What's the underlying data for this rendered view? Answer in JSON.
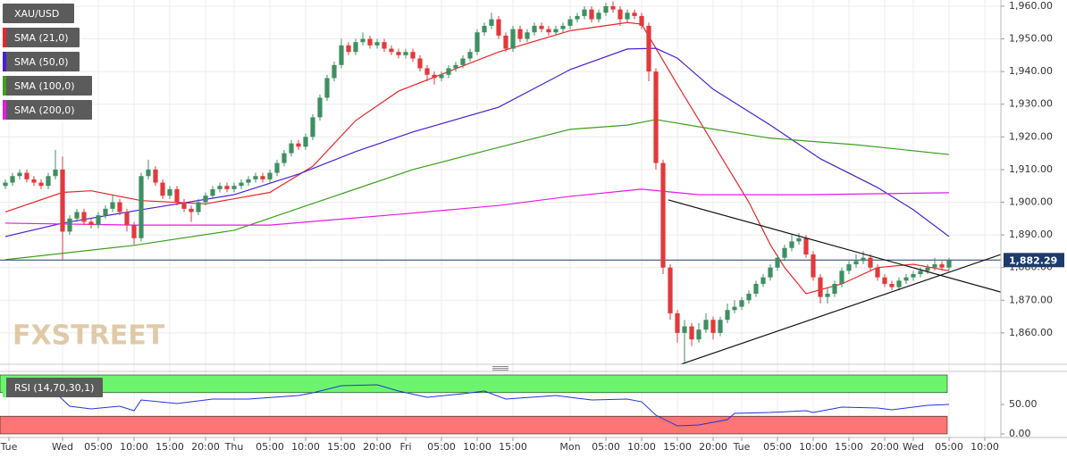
{
  "chart_data": {
    "type": "candlestick",
    "series_name": "XAU/USD",
    "up_color": "#3f8f62",
    "down_color": "#e2393b",
    "x": [
      -8,
      -7,
      -6,
      -5,
      -4,
      -3,
      -2,
      -1,
      0,
      1,
      2,
      3,
      4,
      5,
      6,
      7,
      8,
      9,
      10,
      11,
      12,
      13,
      14,
      15,
      16,
      17,
      18,
      19,
      20,
      21,
      22,
      23,
      24,
      25,
      26,
      27,
      28,
      29,
      30,
      31,
      32,
      33,
      34,
      35,
      36,
      37,
      38,
      39,
      40,
      41,
      42,
      43,
      44,
      45,
      46,
      47,
      48,
      49,
      50,
      51,
      52,
      53,
      54,
      55,
      56,
      57,
      58,
      59,
      60,
      61,
      62,
      63,
      64,
      65,
      66,
      67,
      68,
      69,
      70,
      71,
      72,
      73,
      74,
      75,
      76,
      77,
      78,
      79,
      80,
      81,
      82,
      83,
      84,
      85,
      86,
      87,
      88,
      89,
      90,
      91,
      92,
      93,
      94,
      95,
      96,
      97,
      98,
      99,
      100,
      101,
      102,
      103,
      104,
      105,
      106,
      107,
      108,
      109,
      110,
      111,
      112,
      113,
      114,
      115,
      116,
      117,
      118,
      119,
      120,
      121,
      122,
      123,
      124
    ],
    "open": [
      1905,
      1906,
      1908,
      1909,
      1907,
      1906,
      1905,
      1908,
      1910,
      1891,
      1895,
      1897,
      1894,
      1893,
      1896,
      1898,
      1900,
      1897,
      1893,
      1889,
      1908,
      1910,
      1906,
      1902,
      1904,
      1900,
      1898,
      1897,
      1900,
      1902,
      1904,
      1905,
      1904,
      1905,
      1906,
      1907,
      1908,
      1907,
      1909,
      1912,
      1915,
      1918,
      1917,
      1920,
      1926,
      1932,
      1938,
      1942,
      1948,
      1946,
      1949,
      1950,
      1948,
      1949,
      1947,
      1946,
      1945,
      1946,
      1944,
      1941,
      1939,
      1938,
      1939,
      1941,
      1942,
      1944,
      1946,
      1952,
      1954,
      1956,
      1951,
      1947,
      1953,
      1950,
      1952,
      1954,
      1953,
      1952,
      1953,
      1954,
      1956,
      1957,
      1959,
      1956,
      1958,
      1960,
      1959,
      1956,
      1958,
      1957,
      1954,
      1940,
      1912,
      1880,
      1866,
      1860,
      1862,
      1858,
      1861,
      1864,
      1860,
      1864,
      1867,
      1868,
      1870,
      1872,
      1875,
      1877,
      1880,
      1883,
      1886,
      1888,
      1889,
      1884,
      1877,
      1871,
      1872,
      1875,
      1879,
      1881,
      1882,
      1883,
      1880,
      1877,
      1875,
      1874,
      1876,
      1877,
      1878,
      1879,
      1880,
      1881,
      1880
    ],
    "high": [
      1907,
      1909,
      1910,
      1910,
      1908,
      1907,
      1909,
      1916,
      1914,
      1896,
      1898,
      1898,
      1895,
      1897,
      1899,
      1902,
      1901,
      1898,
      1894,
      1909,
      1913,
      1911,
      1907,
      1905,
      1905,
      1901,
      1899,
      1901,
      1903,
      1905,
      1906,
      1906,
      1906,
      1907,
      1908,
      1909,
      1909,
      1910,
      1913,
      1916,
      1919,
      1919,
      1921,
      1927,
      1933,
      1939,
      1943,
      1950,
      1949,
      1950,
      1952,
      1951,
      1950,
      1950,
      1948,
      1947,
      1947,
      1947,
      1945,
      1942,
      1940,
      1940,
      1942,
      1943,
      1945,
      1947,
      1953,
      1955,
      1958,
      1957,
      1952,
      1954,
      1954,
      1953,
      1955,
      1955,
      1954,
      1954,
      1955,
      1957,
      1958,
      1960,
      1960,
      1959,
      1961,
      1961.5,
      1960,
      1959,
      1959,
      1958,
      1955,
      1941,
      1913,
      1881,
      1867,
      1864,
      1863,
      1863,
      1866,
      1865,
      1865,
      1869,
      1870,
      1871,
      1873,
      1876,
      1878,
      1881,
      1884,
      1887,
      1890,
      1890.5,
      1890,
      1885,
      1878,
      1874,
      1876,
      1880,
      1882,
      1884,
      1885,
      1884,
      1881,
      1878,
      1876,
      1877,
      1878,
      1879,
      1880,
      1881,
      1883,
      1882,
      1883
    ],
    "low": [
      1904,
      1905,
      1907,
      1906,
      1905,
      1904,
      1904,
      1907,
      1882.5,
      1890,
      1894,
      1893,
      1892,
      1892,
      1895,
      1897,
      1896,
      1891,
      1887,
      1888,
      1907,
      1905,
      1901,
      1901,
      1899,
      1897,
      1894,
      1896,
      1899,
      1901,
      1903,
      1903,
      1903,
      1904,
      1905,
      1906,
      1906,
      1906,
      1908,
      1911,
      1914,
      1916,
      1916,
      1919,
      1925,
      1931,
      1937,
      1941,
      1945,
      1945,
      1948,
      1947,
      1947,
      1946,
      1945,
      1944,
      1944,
      1943,
      1940,
      1937,
      1936,
      1937,
      1938,
      1940,
      1941,
      1943,
      1945,
      1951,
      1953,
      1950,
      1946,
      1946,
      1949,
      1949,
      1951,
      1952,
      1951,
      1951,
      1952,
      1953,
      1955,
      1956,
      1955,
      1955,
      1957,
      1958,
      1954,
      1955,
      1956,
      1953,
      1937,
      1910,
      1878,
      1864,
      1857,
      1851,
      1856,
      1857,
      1860,
      1858,
      1859,
      1863,
      1866,
      1867,
      1869,
      1871,
      1874,
      1876,
      1879,
      1882,
      1885,
      1887,
      1883,
      1876,
      1869,
      1869,
      1871,
      1874,
      1878,
      1880,
      1881,
      1879,
      1876,
      1874,
      1873,
      1873,
      1875,
      1876,
      1877,
      1878,
      1879,
      1879,
      1879
    ],
    "close": [
      1906,
      1908,
      1909,
      1907,
      1906,
      1905,
      1908,
      1910,
      1891,
      1895,
      1897,
      1894,
      1893,
      1896,
      1898,
      1900,
      1897,
      1893,
      1889,
      1908,
      1910,
      1906,
      1902,
      1904,
      1900,
      1898,
      1897,
      1900,
      1902,
      1904,
      1905,
      1904,
      1905,
      1906,
      1907,
      1908,
      1907,
      1909,
      1912,
      1915,
      1918,
      1917,
      1920,
      1926,
      1932,
      1938,
      1942,
      1948,
      1946,
      1949,
      1950,
      1948,
      1949,
      1947,
      1946,
      1945,
      1946,
      1944,
      1941,
      1939,
      1938,
      1939,
      1941,
      1942,
      1944,
      1946,
      1952,
      1954,
      1956,
      1951,
      1947,
      1953,
      1950,
      1952,
      1954,
      1953,
      1952,
      1953,
      1954,
      1956,
      1957,
      1959,
      1956,
      1958,
      1960,
      1959,
      1956,
      1958,
      1957,
      1954,
      1940,
      1912,
      1880,
      1866,
      1860,
      1862,
      1858,
      1861,
      1864,
      1860,
      1864,
      1867,
      1868,
      1870,
      1872,
      1875,
      1877,
      1880,
      1883,
      1886,
      1888,
      1889,
      1884,
      1877,
      1871,
      1872,
      1875,
      1879,
      1881,
      1882,
      1883,
      1880,
      1877,
      1875,
      1874,
      1876,
      1877,
      1878,
      1879,
      1880,
      1881,
      1880,
      1882.29
    ],
    "xlim": [
      -8.75,
      131.25
    ],
    "xticks": [
      {
        "value": -7.5,
        "label": "Tue"
      },
      {
        "value": 0,
        "label": "Wed"
      },
      {
        "value": 5,
        "label": "05:00"
      },
      {
        "value": 10,
        "label": "10:00"
      },
      {
        "value": 15,
        "label": "15:00"
      },
      {
        "value": 20,
        "label": "20:00"
      },
      {
        "value": 24,
        "label": "Thu"
      },
      {
        "value": 29,
        "label": "05:00"
      },
      {
        "value": 34,
        "label": "10:00"
      },
      {
        "value": 39,
        "label": "15:00"
      },
      {
        "value": 44,
        "label": "20:00"
      },
      {
        "value": 48,
        "label": "Fri"
      },
      {
        "value": 53,
        "label": "05:00"
      },
      {
        "value": 58,
        "label": "10:00"
      },
      {
        "value": 63,
        "label": "15:00"
      },
      {
        "value": 71,
        "label": "Mon"
      },
      {
        "value": 76,
        "label": "05:00"
      },
      {
        "value": 81,
        "label": "10:00"
      },
      {
        "value": 86,
        "label": "15:00"
      },
      {
        "value": 91,
        "label": "20:00"
      },
      {
        "value": 95,
        "label": "Tue"
      },
      {
        "value": 100,
        "label": "05:00"
      },
      {
        "value": 105,
        "label": "10:00"
      },
      {
        "value": 110,
        "label": "15:00"
      },
      {
        "value": 115,
        "label": "20:00"
      },
      {
        "value": 119,
        "label": "Wed"
      },
      {
        "value": 124,
        "label": "05:00"
      },
      {
        "value": 129,
        "label": "10:00"
      }
    ],
    "ylim": [
      1850.4,
      1961.9
    ],
    "yticks": [
      {
        "value": 1860,
        "label": "1,860.00"
      },
      {
        "value": 1870,
        "label": "1,870.00"
      },
      {
        "value": 1880,
        "label": "1,880.00"
      },
      {
        "value": 1890,
        "label": "1,890.00"
      },
      {
        "value": 1900,
        "label": "1,900.00"
      },
      {
        "value": 1910,
        "label": "1,910.00"
      },
      {
        "value": 1920,
        "label": "1,920.00"
      },
      {
        "value": 1930,
        "label": "1,930.00"
      },
      {
        "value": 1940,
        "label": "1,940.00"
      },
      {
        "value": 1950,
        "label": "1,950.00"
      },
      {
        "value": 1960,
        "label": "1,960.00"
      }
    ],
    "grid": true,
    "overlays": [
      {
        "name": "SMA (21,0)",
        "color": "#e8262a",
        "x": [
          -8,
          0,
          4,
          11,
          20,
          29,
          35,
          41,
          47,
          54,
          61,
          71,
          79,
          81,
          86,
          91,
          96,
          99,
          101,
          104,
          109,
          114,
          119,
          124
        ],
        "values": [
          1897,
          1903,
          1903.5,
          1900.5,
          1899.5,
          1903,
          1911,
          1925,
          1934,
          1940,
          1946,
          1952.5,
          1955,
          1954.5,
          1936,
          1918,
          1900,
          1887,
          1880,
          1872,
          1875,
          1880,
          1881,
          1879
        ]
      },
      {
        "name": "SMA (50,0)",
        "color": "#4a1fd6",
        "x": [
          -8,
          0,
          11,
          24,
          33,
          41,
          49,
          61,
          71,
          79,
          83,
          86,
          91,
          99,
          106,
          114,
          119,
          124
        ],
        "values": [
          1889.5,
          1893.6,
          1897.7,
          1902.3,
          1908.6,
          1915.5,
          1921.5,
          1929.1,
          1940.6,
          1946.9,
          1947.1,
          1944.1,
          1934.6,
          1923.6,
          1913.3,
          1904.5,
          1897.7,
          1889.5
        ]
      },
      {
        "name": "SMA (100,0)",
        "color": "#3ca01e",
        "x": [
          -8,
          10,
          24,
          35,
          49,
          61,
          71,
          79,
          83,
          89,
          99,
          111,
          124
        ],
        "values": [
          1882.4,
          1886.8,
          1891.4,
          1899.6,
          1910,
          1916.8,
          1922.3,
          1923.6,
          1925.3,
          1923.1,
          1919.6,
          1917.6,
          1914.6
        ]
      },
      {
        "name": "SMA (200,0)",
        "color": "#e619e6",
        "x": [
          -8,
          10,
          29,
          47,
          61,
          71,
          81,
          89,
          104,
          124
        ],
        "values": [
          1893.6,
          1893,
          1893,
          1896.3,
          1899,
          1901.8,
          1904,
          1902.3,
          1902.3,
          1902.9
        ]
      }
    ],
    "trendlines": [
      {
        "color": "#111111",
        "x": [
          84.75,
          131.25
        ],
        "values": [
          1900.7,
          1872.5
        ]
      },
      {
        "color": "#111111",
        "x": [
          86.5,
          131.25
        ],
        "values": [
          1850.4,
          1884
        ]
      }
    ],
    "last_price": {
      "value": 1882.29,
      "label": "1,882.29",
      "color": "#1d3b6b"
    },
    "watermark": "FXSTREET",
    "rsi": {
      "type": "line",
      "name": "RSI (14,70,30,1)",
      "color": "#2233dd",
      "x": [
        -8,
        -1,
        1,
        4,
        8,
        10,
        11,
        16,
        21,
        26,
        33,
        35,
        39,
        44,
        47,
        51,
        56,
        59,
        62,
        69,
        74,
        79,
        81,
        83,
        86,
        89,
        93,
        94,
        99,
        104,
        105,
        109,
        114,
        116,
        121,
        124
      ],
      "values": [
        68.2,
        69.7,
        47,
        42.4,
        47,
        39.4,
        57.6,
        51.5,
        59.1,
        59.1,
        65.2,
        69.7,
        81.8,
        83.3,
        72.7,
        62.1,
        68.2,
        72.7,
        59.1,
        65.2,
        57.6,
        59.1,
        54.5,
        31.8,
        13.6,
        15.2,
        24.2,
        34.8,
        36.4,
        39.4,
        36.4,
        45.5,
        43.9,
        40.9,
        48.5,
        50
      ],
      "ylim": [
        0,
        100
      ],
      "yticks": [
        {
          "value": 50,
          "label": "50.00"
        },
        {
          "value": 0,
          "label": "0.00"
        }
      ],
      "bands": [
        {
          "from": 70,
          "to": 100,
          "color": "#6cf56c"
        },
        {
          "from": 0,
          "to": 30,
          "color": "#ff7474"
        }
      ]
    }
  }
}
